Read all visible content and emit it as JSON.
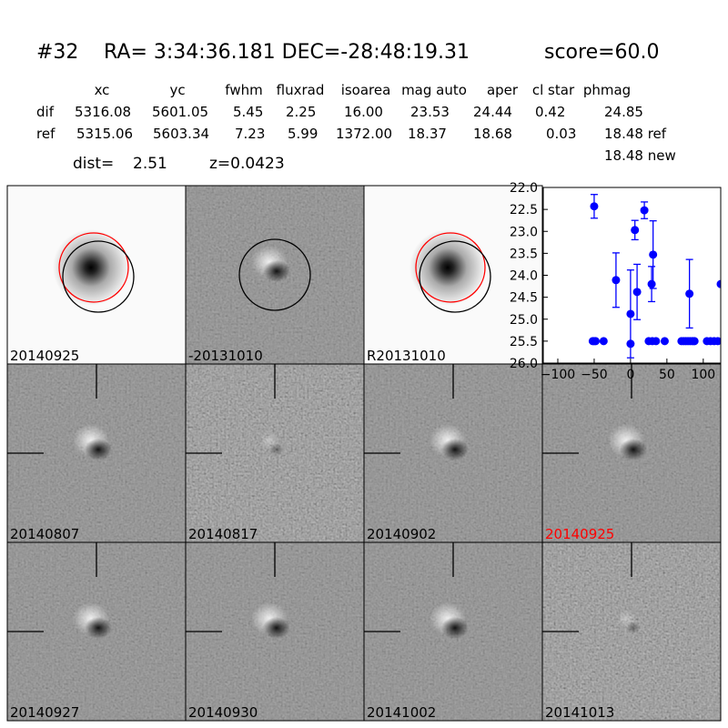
{
  "header": {
    "id": "#32",
    "coords": "RA= 3:34:36.181 DEC=-28:48:19.31",
    "score": "score=60.0"
  },
  "table": {
    "columns": [
      "xc",
      "yc",
      "fwhm",
      "fluxrad",
      "isoarea",
      "mag auto",
      "aper",
      "cl star",
      "phmag"
    ],
    "rows": [
      {
        "label": "dif",
        "cells": [
          "5316.08",
          "5601.05",
          "5.45",
          "2.25",
          "16.00",
          "23.53",
          "24.44",
          "0.42",
          "24.85"
        ]
      },
      {
        "label": "ref",
        "cells": [
          "5315.06",
          "5603.34",
          "7.23",
          "5.99",
          "1372.00",
          "18.37",
          "18.68",
          "0.03",
          "18.48 ref"
        ]
      }
    ],
    "extra": "18.48 new"
  },
  "info": {
    "dist_label": "dist=",
    "dist": "2.51",
    "z": "z=0.0423"
  },
  "stamps": [
    {
      "label": "20140925",
      "color": "#000000"
    },
    {
      "label": "-20131010",
      "color": "#000000"
    },
    {
      "label": "R20131010",
      "color": "#000000"
    },
    {
      "label": "20140807",
      "color": "#000000"
    },
    {
      "label": "20140817",
      "color": "#000000"
    },
    {
      "label": "20140902",
      "color": "#000000"
    },
    {
      "label": "20140925",
      "color": "#ff0000"
    },
    {
      "label": "20140927",
      "color": "#000000"
    },
    {
      "label": "20140930",
      "color": "#000000"
    },
    {
      "label": "20141002",
      "color": "#000000"
    },
    {
      "label": "20141013",
      "color": "#000000"
    }
  ],
  "lightcurve": {
    "type": "scatter",
    "color": "#0000ff",
    "x": [
      -50,
      -20,
      0,
      6,
      9,
      19,
      29,
      31,
      81,
      124,
      -52,
      -50,
      -48,
      -37,
      0,
      25,
      30,
      35,
      47,
      70,
      73,
      76,
      79,
      82,
      85,
      88,
      105,
      110,
      115,
      120
    ],
    "y": [
      22.43,
      24.11,
      24.88,
      22.97,
      24.38,
      22.52,
      24.2,
      23.53,
      24.42,
      24.2,
      25.5,
      25.5,
      25.5,
      25.5,
      25.56,
      25.5,
      25.5,
      25.5,
      25.5,
      25.5,
      25.5,
      25.5,
      25.5,
      25.5,
      25.5,
      25.5,
      25.5,
      25.5,
      25.5,
      25.5
    ],
    "err": [
      0.27,
      0.62,
      1.0,
      0.22,
      0.63,
      0.19,
      0.4,
      0.77,
      0.78,
      null,
      null,
      null,
      null,
      null,
      null,
      null,
      null,
      null,
      null,
      null,
      null,
      null,
      null,
      null,
      null,
      null,
      null,
      null,
      null,
      null
    ],
    "xlim": [
      -120,
      124
    ],
    "ylim": [
      26,
      22
    ],
    "xticks": [
      {
        "value": -100,
        "label": "−100"
      },
      {
        "value": -50,
        "label": "−50"
      },
      0,
      50,
      100
    ],
    "yticks": [
      {
        "value": 22,
        "label": "22.0"
      },
      {
        "value": 22.5,
        "label": "22.5"
      },
      {
        "value": 23,
        "label": "23.0"
      },
      {
        "value": 23.5,
        "label": "23.5"
      },
      {
        "value": 24,
        "label": "24.0"
      },
      {
        "value": 24.5,
        "label": "24.5"
      },
      {
        "value": 25,
        "label": "25.0"
      },
      {
        "value": 25.5,
        "label": "25.5"
      },
      {
        "value": 26,
        "label": "26.0"
      }
    ]
  }
}
